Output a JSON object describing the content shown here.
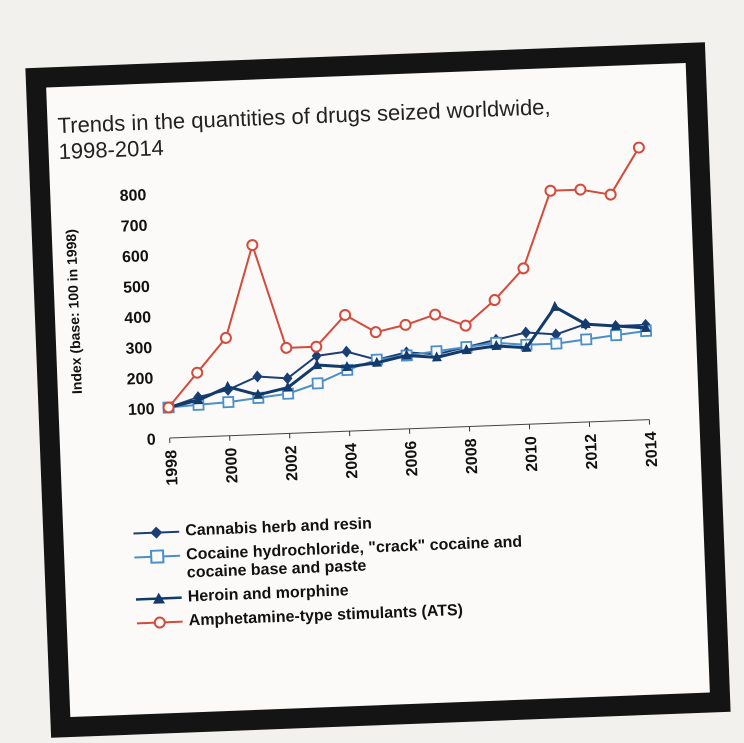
{
  "chart_data": {
    "type": "line",
    "title": "Trends in the quantities of drugs seized worldwide,",
    "title_line2": "1998-2014",
    "ylabel": "Index (base: 100 in 1998)",
    "ylim": [
      0,
      850
    ],
    "yticks": [
      "0",
      "100",
      "200",
      "300",
      "400",
      "500",
      "600",
      "700",
      "800"
    ],
    "x": [
      1998,
      1999,
      2000,
      2001,
      2002,
      2003,
      2004,
      2005,
      2006,
      2007,
      2008,
      2009,
      2010,
      2011,
      2012,
      2013,
      2014
    ],
    "xticks": [
      "1998",
      "2000",
      "2002",
      "2004",
      "2006",
      "2008",
      "2010",
      "2012",
      "2014"
    ],
    "series": [
      {
        "name": "Cannabis herb and resin",
        "color": "#1b3f73",
        "marker": "diamond",
        "values": [
          100,
          130,
          150,
          190,
          180,
          250,
          260,
          230,
          250,
          240,
          260,
          280,
          300,
          290,
          320,
          310,
          310
        ]
      },
      {
        "name": "Cocaine hydrochloride, \"crack\" cocaine and cocaine base and paste",
        "color": "#4a8fc9",
        "marker": "square",
        "values": [
          100,
          105,
          110,
          120,
          130,
          160,
          200,
          230,
          240,
          250,
          260,
          270,
          260,
          260,
          270,
          280,
          290
        ]
      },
      {
        "name": "Heroin and morphine",
        "color": "#123a6b",
        "marker": "triangle",
        "values": [
          100,
          120,
          160,
          130,
          150,
          220,
          210,
          220,
          240,
          230,
          250,
          260,
          250,
          380,
          320,
          310,
          300
        ]
      },
      {
        "name": "Amphetamine-type stimulants (ATS)",
        "color": "#d44b3c",
        "marker": "circle",
        "values": [
          100,
          210,
          320,
          620,
          280,
          280,
          380,
          320,
          340,
          370,
          330,
          410,
          510,
          760,
          760,
          740,
          890
        ]
      }
    ],
    "legend_position": "bottom"
  },
  "legend": {
    "cannabis": "Cannabis herb and resin",
    "cocaine_line1": "Cocaine hydrochloride, \"crack\" cocaine and",
    "cocaine_line2": "cocaine base and paste",
    "heroin": "Heroin and morphine",
    "ats": "Amphetamine-type stimulants (ATS)"
  }
}
